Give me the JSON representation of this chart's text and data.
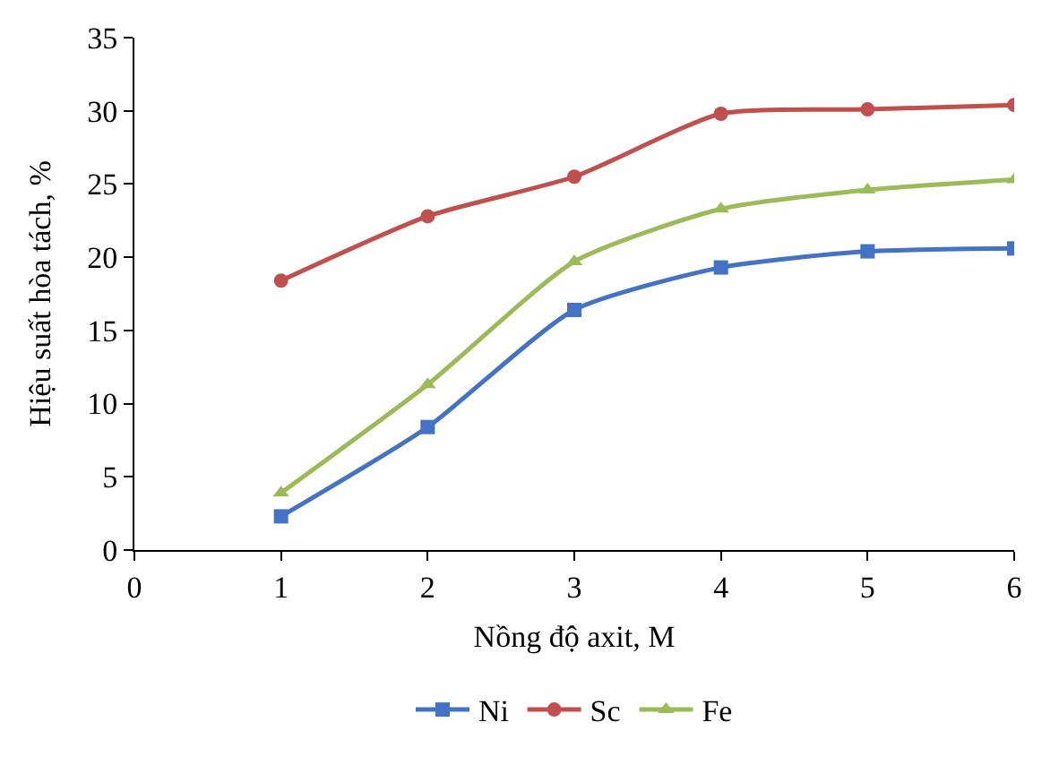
{
  "chart_data": {
    "type": "line",
    "xlabel": "Nồng độ axit, M",
    "ylabel": "Hiệu suất hòa tách, %",
    "x": [
      1,
      2,
      3,
      4,
      5,
      6
    ],
    "series": [
      {
        "name": "Ni",
        "color": "#4472c4",
        "marker": "square",
        "values": [
          2.3,
          8.4,
          16.4,
          19.3,
          20.4,
          20.6
        ]
      },
      {
        "name": "Sc",
        "color": "#c0504d",
        "marker": "circle",
        "values": [
          18.4,
          22.8,
          25.5,
          29.8,
          30.1,
          30.4
        ]
      },
      {
        "name": "Fe",
        "color": "#9bbb59",
        "marker": "triangle",
        "values": [
          3.9,
          11.3,
          19.7,
          23.3,
          24.6,
          25.3
        ]
      }
    ],
    "xlim": [
      0,
      6
    ],
    "xticks": [
      0,
      1,
      2,
      3,
      4,
      5,
      6
    ],
    "ylim": [
      0,
      35
    ],
    "yticks": [
      0,
      5,
      10,
      15,
      20,
      25,
      30,
      35
    ],
    "legend": "bottom"
  }
}
